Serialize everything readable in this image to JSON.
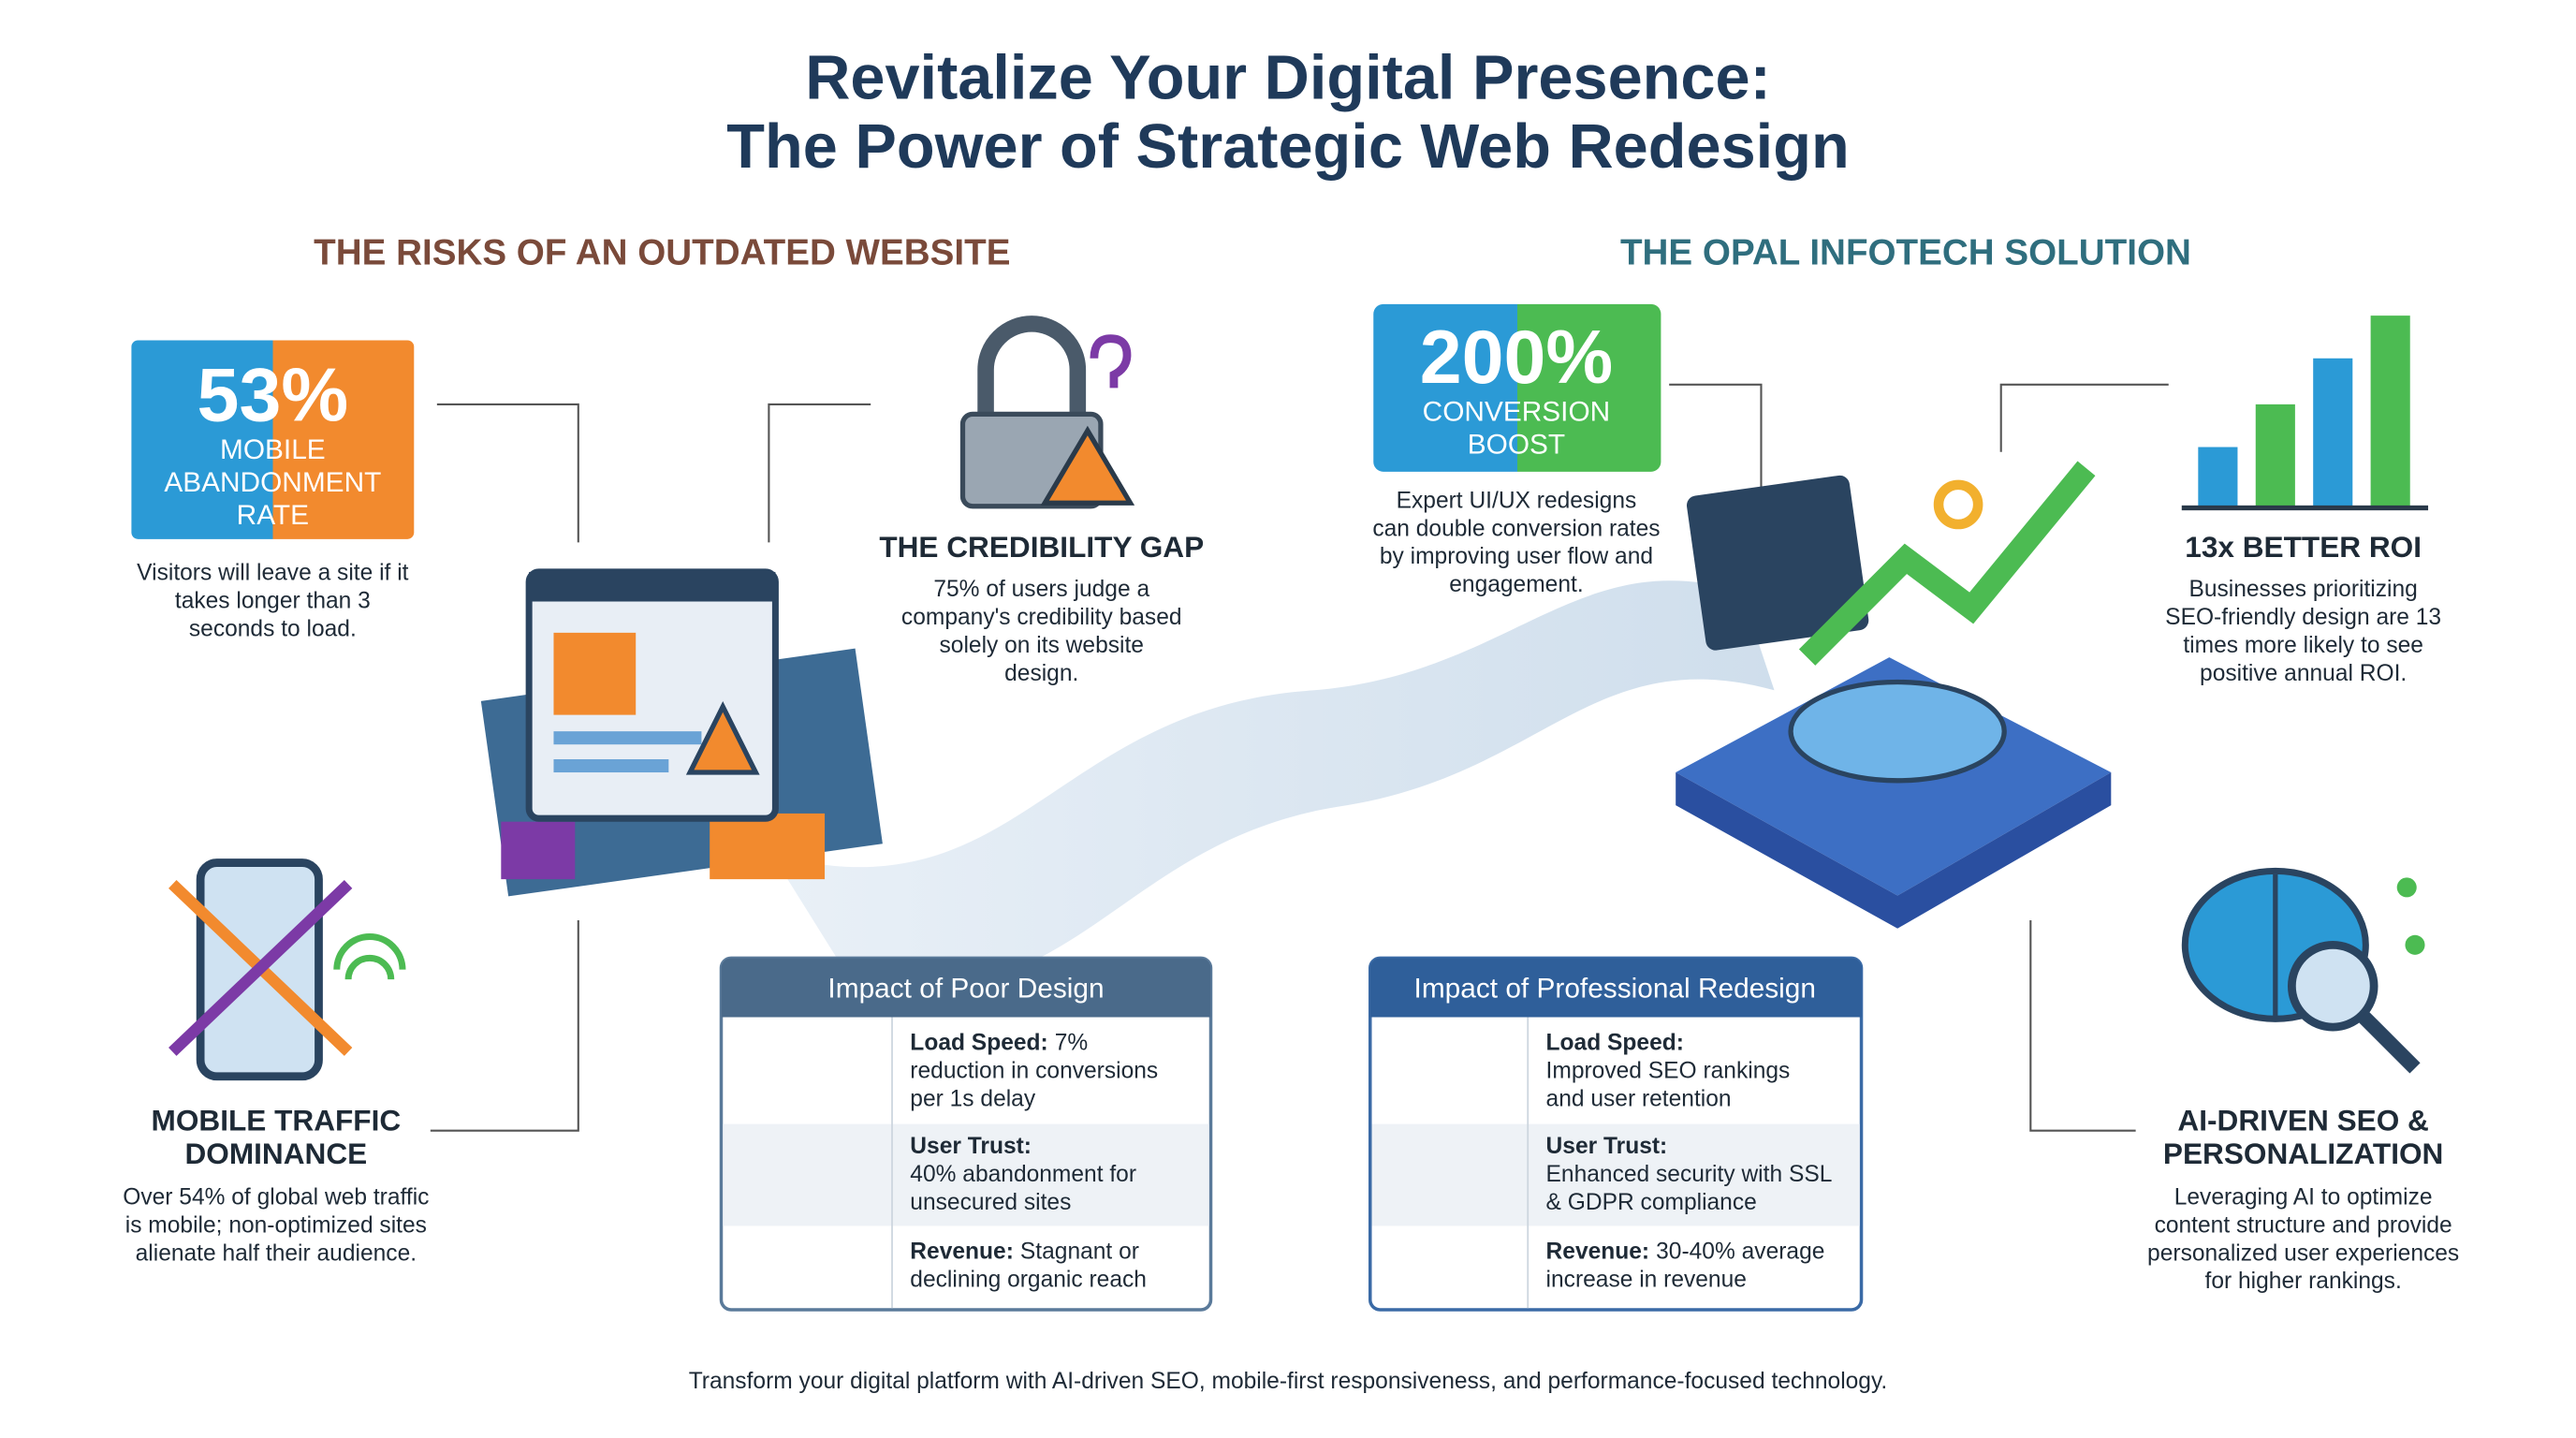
{
  "title": [
    "Revitalize Your Digital Presence:",
    "The Power of Strategic Web Redesign"
  ],
  "risks": {
    "heading": "THE RISKS OF AN OUTDATED WEBSITE",
    "stat": {
      "value": "53%",
      "label": [
        "MOBILE",
        "ABANDONMENT",
        "RATE"
      ],
      "text": [
        "Visitors will leave a site if it",
        "takes longer than 3",
        "seconds to load."
      ]
    },
    "credibility": {
      "title": [
        "THE CREDIBILITY GAP"
      ],
      "text": [
        "75% of users judge a",
        "company's credibility based",
        "solely on its website",
        "design."
      ]
    },
    "mobile": {
      "title": [
        "MOBILE TRAFFIC",
        "DOMINANCE"
      ],
      "text": [
        "Over 54% of global web traffic",
        "is mobile; non-optimized sites",
        "alienate half their audience."
      ]
    }
  },
  "solution": {
    "heading": "THE OPAL INFOTECH SOLUTION",
    "stat": {
      "value": "200%",
      "label": [
        "CONVERSION",
        "BOOST"
      ],
      "text": [
        "Expert UI/UX redesigns",
        "can double conversion rates",
        "by improving user flow and",
        "engagement."
      ]
    },
    "roi": {
      "title": [
        "13x BETTER ROI"
      ],
      "text": [
        "Businesses prioritizing",
        "SEO-friendly design are 13",
        "times more likely to see",
        "positive annual ROI."
      ]
    },
    "ai": {
      "title": [
        "AI-DRIVEN SEO &",
        "PERSONALIZATION"
      ],
      "text": [
        "Leveraging AI to optimize",
        "content structure and provide",
        "personalized user experiences",
        "for higher rankings."
      ]
    }
  },
  "poor_design": {
    "title": "Impact of Poor Design",
    "rows": [
      {
        "label": "Load Speed:",
        "inline": "7%",
        "lines": [
          "reduction in conversions",
          "per 1s delay"
        ]
      },
      {
        "label": "User Trust:",
        "lines": [
          "40% abandonment for",
          "unsecured sites"
        ]
      },
      {
        "label": "Revenue:",
        "inline": "Stagnant or",
        "lines": [
          "declining organic reach"
        ]
      }
    ]
  },
  "redesign": {
    "title": "Impact of Professional Redesign",
    "rows": [
      {
        "label": "Load Speed:",
        "lines": [
          "Improved SEO rankings",
          "and user retention"
        ]
      },
      {
        "label": "User Trust:",
        "lines": [
          "Enhanced security with SSL",
          "& GDPR compliance"
        ]
      },
      {
        "label": "Revenue:",
        "inline": "30-40% average",
        "lines": [
          "increase in revenue"
        ]
      }
    ]
  },
  "footer": "Transform your digital platform with AI-driven SEO, mobile-first responsiveness, and performance-focused technology."
}
